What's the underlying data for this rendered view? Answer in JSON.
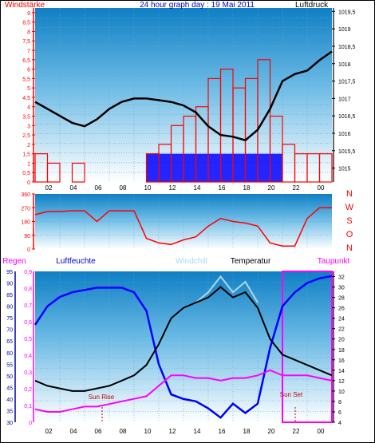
{
  "chart_data": [
    {
      "type": "line",
      "title": "24 hour graph day : 19 Mai 2011",
      "left_label": "Windstärke",
      "right_label": "Luftdruck",
      "x_ticks": [
        "02",
        "04",
        "06",
        "08",
        "10",
        "12",
        "14",
        "16",
        "18",
        "20",
        "22",
        "00"
      ],
      "y_left_ticks": [
        "0",
        "0,5",
        "1",
        "1,5",
        "2",
        "2,5",
        "3",
        "3,5",
        "4",
        "4,5",
        "5",
        "5,5",
        "6",
        "6,5",
        "7",
        "7,5",
        "8",
        "8,5",
        "9"
      ],
      "y_left_range": [
        0,
        9.25
      ],
      "y_right_ticks": [
        "1015",
        "1015,5",
        "1016",
        "1016,5",
        "1017",
        "1017,5",
        "1018",
        "1018,5",
        "1019",
        "1019,5"
      ],
      "y_right_range": [
        1014.6,
        1019.6
      ],
      "x_range": [
        0,
        24
      ],
      "series": [
        {
          "name": "Luftdruck",
          "color": "#000000",
          "x": [
            0,
            1,
            2,
            3,
            4,
            5,
            6,
            7,
            8,
            9,
            10,
            11,
            12,
            13,
            14,
            15,
            16,
            17,
            18,
            19,
            20,
            21,
            22,
            23,
            24
          ],
          "y": [
            1016.9,
            1016.7,
            1016.5,
            1016.3,
            1016.2,
            1016.4,
            1016.7,
            1016.9,
            1017.0,
            1017.0,
            1016.95,
            1016.9,
            1016.8,
            1016.6,
            1016.2,
            1015.95,
            1015.9,
            1015.8,
            1016.1,
            1016.7,
            1017.5,
            1017.7,
            1017.8,
            1018.1,
            1018.35
          ]
        },
        {
          "name": "Windstärke",
          "color": "#ff0000",
          "x": [
            0,
            1,
            2,
            3,
            4,
            5,
            6,
            7,
            8,
            9,
            10,
            11,
            12,
            13,
            14,
            15,
            16,
            17,
            18,
            19,
            20,
            21,
            22,
            23,
            24
          ],
          "y": [
            1.5,
            1,
            0,
            1,
            0,
            0,
            0,
            0,
            0,
            1.5,
            2,
            3,
            3.5,
            4,
            5.5,
            6,
            5,
            5.5,
            6.5,
            3.5,
            2,
            1.5,
            1.5,
            1.5,
            1.5
          ]
        },
        {
          "name": "Windböen",
          "color": "#0000ff",
          "x": [
            9,
            10,
            11,
            12,
            13,
            14,
            15,
            16,
            17,
            18,
            19,
            20
          ],
          "y": [
            1.5,
            1.5,
            1.5,
            1.5,
            1.5,
            1.5,
            1.5,
            1.5,
            1.5,
            1.5,
            1.5,
            1.5
          ]
        }
      ]
    },
    {
      "type": "line",
      "right_labels": [
        "N",
        "W",
        "S",
        "O",
        "N"
      ],
      "y_ticks": [
        "0",
        "90",
        "180",
        "270",
        "360"
      ],
      "y_range": [
        0,
        360
      ],
      "x_range": [
        0,
        24
      ],
      "series": [
        {
          "name": "Windrichtung",
          "color": "#ff0000",
          "x": [
            0,
            1,
            2,
            3,
            4,
            5,
            6,
            7,
            8,
            9,
            10,
            11,
            12,
            13,
            14,
            15,
            16,
            17,
            18,
            19,
            20,
            21,
            22,
            23,
            24
          ],
          "y": [
            225,
            245,
            245,
            250,
            250,
            180,
            250,
            250,
            250,
            70,
            40,
            30,
            60,
            80,
            150,
            200,
            180,
            170,
            150,
            40,
            20,
            20,
            200,
            270,
            270
          ]
        }
      ]
    },
    {
      "type": "line",
      "legend": [
        "Regen",
        "Luftfeuchte",
        "Windchill",
        "Temperatur",
        "Taupunkt"
      ],
      "annotations": [
        "Sun Rise",
        "Sun Set"
      ],
      "x_range": [
        0,
        24
      ],
      "y_left1_ticks": [
        "0",
        "0,1",
        "0,2",
        "0,3",
        "0,4",
        "0,5",
        "0,6",
        "0,7",
        "0,8",
        "0,9"
      ],
      "y_left1_range": [
        0,
        0.9
      ],
      "y_left2_ticks": [
        "30",
        "35",
        "40",
        "45",
        "50",
        "55",
        "60",
        "65",
        "70",
        "75",
        "80",
        "85",
        "90",
        "95"
      ],
      "y_left2_range": [
        30,
        95
      ],
      "y_right_ticks": [
        "4",
        "6",
        "8",
        "10",
        "12",
        "14",
        "16",
        "18",
        "20",
        "22",
        "24",
        "26",
        "28",
        "30",
        "32"
      ],
      "y_right_range": [
        4,
        33
      ],
      "series": [
        {
          "name": "Luftfeuchte",
          "color": "#0000ff",
          "x": [
            0,
            1,
            2,
            3,
            4,
            5,
            6,
            7,
            8,
            9,
            10,
            11,
            12,
            13,
            14,
            15,
            16,
            17,
            18,
            19,
            20,
            21,
            22,
            23,
            24
          ],
          "y": [
            72,
            80,
            84,
            86,
            87,
            88,
            88,
            88,
            86,
            78,
            55,
            42,
            40,
            39,
            36,
            32,
            38,
            34,
            38,
            62,
            80,
            86,
            90,
            92,
            93
          ]
        },
        {
          "name": "Temperatur",
          "color": "#000000",
          "x": [
            0,
            1,
            2,
            3,
            4,
            5,
            6,
            7,
            8,
            9,
            10,
            11,
            12,
            13,
            14,
            15,
            16,
            17,
            18,
            19,
            20,
            21,
            22,
            23,
            24
          ],
          "y": [
            12,
            11,
            10.5,
            10,
            10,
            10.5,
            11,
            12,
            13,
            15,
            19,
            24,
            26,
            27,
            28,
            30,
            28,
            29,
            26,
            20,
            17,
            16,
            15,
            14,
            13
          ]
        },
        {
          "name": "Windchill",
          "color": "#add8e6",
          "x": [
            11,
            12,
            13,
            14,
            15,
            16,
            17,
            18
          ],
          "y": [
            24,
            26,
            27,
            29,
            32,
            29,
            31,
            27
          ]
        },
        {
          "name": "Taupunkt",
          "color": "#ff00ff",
          "x": [
            0,
            1,
            2,
            3,
            4,
            5,
            6,
            7,
            8,
            9,
            10,
            11,
            12,
            13,
            14,
            15,
            16,
            17,
            18,
            19,
            20,
            21,
            22,
            23,
            24
          ],
          "y": [
            6.5,
            6,
            6,
            6.5,
            7,
            7,
            7.5,
            8,
            8.5,
            9,
            11,
            13,
            13,
            12.5,
            12.5,
            12,
            12.5,
            12.5,
            13,
            14,
            13,
            13,
            13,
            12.5,
            12
          ]
        }
      ]
    }
  ]
}
